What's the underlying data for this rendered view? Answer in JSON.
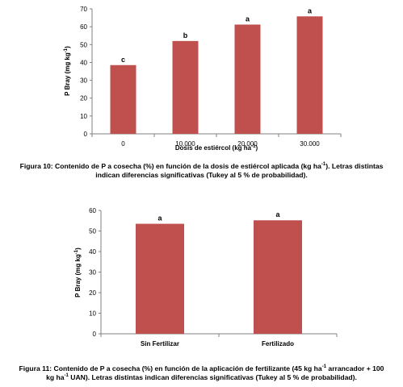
{
  "colors": {
    "bar": "#c0504d",
    "axis": "#808080"
  },
  "figure10": {
    "caption": {
      "p1": "Figura 10: Contenido de P a cosecha (%) en función de la dosis de estiércol aplicada (kg ha",
      "p1sup": "-1",
      "p2": "). Letras distintas",
      "line2": "indican diferencias significativas (Tukey al 5 % de probabilidad)."
    }
  },
  "figure11": {
    "caption": {
      "p1": "Figura 11: Contenido de P a cosecha (%) en función de la aplicación de fertilizante (45 kg ha",
      "p1sup": "-1",
      "p2": " arrancador + 100",
      "l2a": "kg ha",
      "l2sup": "-1",
      "l2b": " UAN). Letras distintas indican diferencias significativas (Tukey al 5 % de probabilidad)."
    }
  },
  "chart_data": [
    {
      "type": "bar",
      "categories": [
        "0",
        "10.000",
        "20.000",
        "30.000"
      ],
      "values": [
        38.5,
        52,
        61.2,
        65.8
      ],
      "letters": [
        "c",
        "b",
        "a",
        "a"
      ],
      "ylabel": "P Bray  (mg kg-1)",
      "xlabel": "Dosis de estiércol (kg ha-1)",
      "ylim": [
        0,
        70
      ],
      "yticks": [
        0,
        10,
        20,
        30,
        40,
        50,
        60,
        70
      ]
    },
    {
      "type": "bar",
      "categories": [
        "Sin Fertilizar",
        "Fertilizado"
      ],
      "values": [
        53.5,
        55.2
      ],
      "letters": [
        "a",
        "a"
      ],
      "ylabel": "P Bray  (mg kg-1)",
      "xlabel": "",
      "ylim": [
        0,
        60
      ],
      "yticks": [
        0,
        10,
        20,
        30,
        40,
        50,
        60
      ]
    }
  ]
}
